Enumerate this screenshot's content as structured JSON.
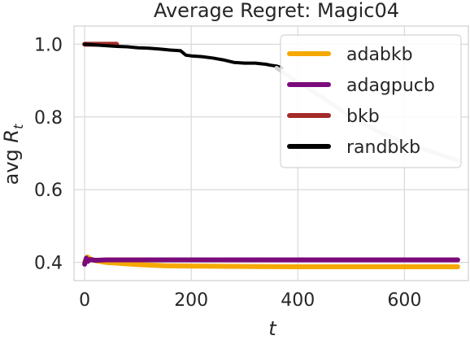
{
  "chart_data": {
    "type": "line",
    "title": "Average Regret: Magic04",
    "xlabel": "t",
    "ylabel_prefix": "avg ",
    "ylabel_symbol": "R",
    "ylabel_sub": "t",
    "xlim": [
      -20,
      720
    ],
    "ylim": [
      0.35,
      1.05
    ],
    "xticks": [
      0,
      200,
      400,
      600
    ],
    "xtick_labels": [
      "0",
      "200",
      "400",
      "600"
    ],
    "yticks": [
      0.4,
      0.6,
      0.8,
      1.0
    ],
    "ytick_labels": [
      "0.4",
      "0.6",
      "0.8",
      "1.0"
    ],
    "grid": true,
    "legend_position": "top-right",
    "series": [
      {
        "name": "adabkb",
        "color": "#f5a800",
        "x": [
          0,
          5,
          10,
          20,
          40,
          60,
          100,
          150,
          200,
          300,
          400,
          500,
          600,
          700
        ],
        "y": [
          0.4,
          0.415,
          0.41,
          0.405,
          0.4,
          0.398,
          0.394,
          0.391,
          0.39,
          0.389,
          0.388,
          0.388,
          0.388,
          0.388
        ]
      },
      {
        "name": "adagpucb",
        "color": "#7b0a7b",
        "x": [
          0,
          3,
          6,
          10,
          20,
          40,
          100,
          200,
          300,
          400,
          500,
          600,
          700
        ],
        "y": [
          0.395,
          0.412,
          0.403,
          0.408,
          0.406,
          0.407,
          0.407,
          0.407,
          0.407,
          0.407,
          0.407,
          0.407,
          0.407
        ]
      },
      {
        "name": "bkb",
        "color": "#a52a2a",
        "x": [
          0,
          20,
          40,
          60
        ],
        "y": [
          1.0,
          1.0,
          1.0,
          1.0
        ]
      },
      {
        "name": "randbkb",
        "color": "#000000",
        "x": [
          0,
          20,
          40,
          60,
          80,
          100,
          120,
          140,
          160,
          180,
          190,
          200,
          220,
          240,
          260,
          280,
          300,
          320,
          340,
          350,
          360,
          370
        ],
        "y": [
          1.0,
          0.998,
          0.996,
          0.994,
          0.993,
          0.99,
          0.989,
          0.987,
          0.984,
          0.982,
          0.97,
          0.968,
          0.966,
          0.962,
          0.957,
          0.95,
          0.948,
          0.948,
          0.945,
          0.942,
          0.94,
          0.935
        ]
      },
      {
        "name": "",
        "color": "#cfcfcf",
        "x": [
          360,
          400,
          450,
          500,
          550,
          600,
          650,
          700
        ],
        "y": [
          0.935,
          0.895,
          0.85,
          0.8,
          0.76,
          0.73,
          0.705,
          0.68
        ]
      }
    ]
  }
}
